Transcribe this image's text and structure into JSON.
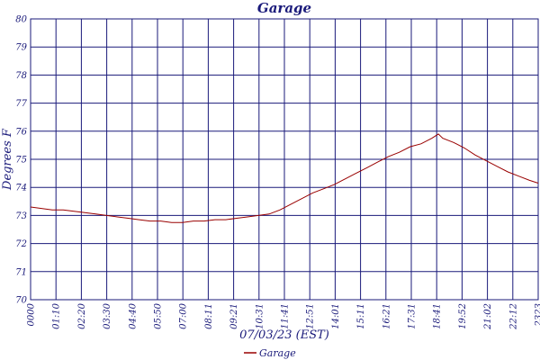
{
  "colors": {
    "grid": "#1a1a7a",
    "series": "#990000",
    "text": "#1a1a7a"
  },
  "chart_data": {
    "type": "line",
    "title": "Garage",
    "xlabel": "07/03/23 (EST)",
    "ylabel": "Degrees F",
    "ylim": [
      70,
      80
    ],
    "y_ticks": [
      "70",
      "71",
      "72",
      "73",
      "74",
      "75",
      "76",
      "77",
      "78",
      "79",
      "80"
    ],
    "x_ticks": [
      "0000",
      "01:10",
      "02:20",
      "03:30",
      "04:40",
      "05:50",
      "07:00",
      "08:11",
      "09:21",
      "10:31",
      "11:41",
      "12:51",
      "14:01",
      "15:11",
      "16:21",
      "17:31",
      "18:41",
      "19:52",
      "21:02",
      "22:12",
      "2323"
    ],
    "grid": true,
    "legend": "bottom-center",
    "series": [
      {
        "name": "Garage",
        "x": [
          0,
          0.5,
          1,
          1.5,
          2,
          2.5,
          3,
          3.5,
          4,
          4.5,
          5,
          5.5,
          6,
          6.5,
          7,
          7.5,
          8,
          8.5,
          9,
          9.5,
          10,
          10.5,
          11,
          11.5,
          12,
          12.5,
          13,
          13.5,
          14,
          14.5,
          15,
          15.5,
          16,
          16.5,
          17,
          17.5,
          18,
          18.5,
          18.8,
          19,
          19.5,
          20,
          20.5,
          21,
          21.5,
          22,
          22.5,
          23,
          23.4
        ],
        "values": [
          73.3,
          73.25,
          73.2,
          73.2,
          73.15,
          73.1,
          73.05,
          73.0,
          72.95,
          72.9,
          72.85,
          72.8,
          72.8,
          72.75,
          72.75,
          72.8,
          72.8,
          72.85,
          72.85,
          72.9,
          72.95,
          73.0,
          73.05,
          73.2,
          73.4,
          73.6,
          73.8,
          73.95,
          74.1,
          74.3,
          74.5,
          74.7,
          74.9,
          75.1,
          75.25,
          75.45,
          75.55,
          75.75,
          75.9,
          75.75,
          75.6,
          75.4,
          75.15,
          74.95,
          74.75,
          74.55,
          74.4,
          74.25,
          74.15
        ]
      }
    ]
  }
}
